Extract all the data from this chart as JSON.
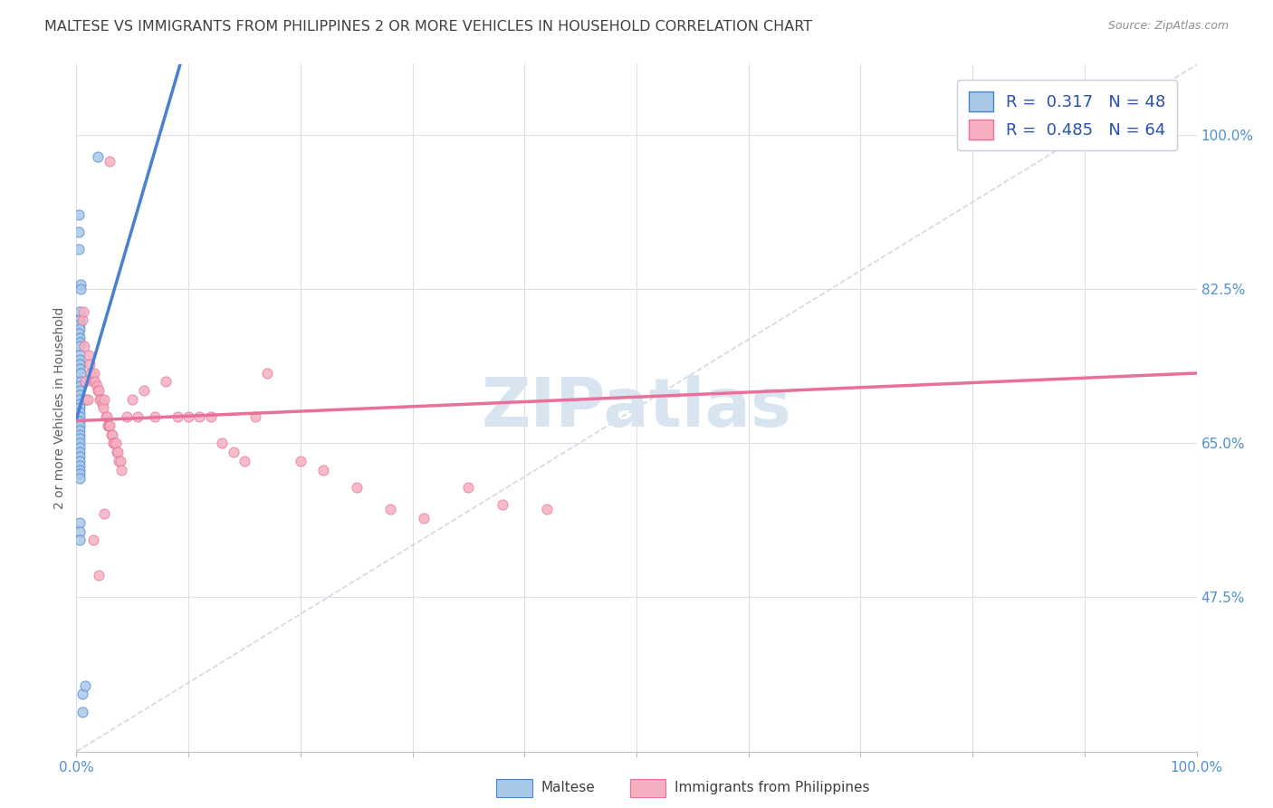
{
  "title": "MALTESE VS IMMIGRANTS FROM PHILIPPINES 2 OR MORE VEHICLES IN HOUSEHOLD CORRELATION CHART",
  "source": "Source: ZipAtlas.com",
  "ylabel": "2 or more Vehicles in Household",
  "ytick_labels": [
    "47.5%",
    "65.0%",
    "82.5%",
    "100.0%"
  ],
  "ytick_vals": [
    0.475,
    0.65,
    0.825,
    1.0
  ],
  "xlim": [
    0.0,
    1.0
  ],
  "ylim": [
    0.3,
    1.08
  ],
  "maltese_R": 0.317,
  "maltese_N": 48,
  "philippines_R": 0.485,
  "philippines_N": 64,
  "maltese_color": "#a8c8e8",
  "philippines_color": "#f4b0c0",
  "maltese_line_color": "#4a80d0",
  "philippines_line_color": "#e8709a",
  "diagonal_color": "#c8d0d8",
  "legend_R_color": "#2850b0",
  "background_color": "#ffffff",
  "grid_color": "#dde0e8",
  "title_color": "#404040",
  "axis_label_color": "#5090d0",
  "watermark_color": "#d8e4f0",
  "maltese_x": [
    0.019,
    0.002,
    0.002,
    0.002,
    0.004,
    0.004,
    0.003,
    0.003,
    0.003,
    0.003,
    0.002,
    0.003,
    0.003,
    0.003,
    0.003,
    0.003,
    0.003,
    0.003,
    0.004,
    0.004,
    0.003,
    0.003,
    0.003,
    0.003,
    0.003,
    0.003,
    0.003,
    0.003,
    0.003,
    0.003,
    0.003,
    0.003,
    0.003,
    0.003,
    0.003,
    0.003,
    0.003,
    0.003,
    0.003,
    0.003,
    0.003,
    0.003,
    0.003,
    0.003,
    0.003,
    0.005,
    0.008,
    0.005
  ],
  "maltese_y": [
    0.975,
    0.91,
    0.89,
    0.87,
    0.83,
    0.825,
    0.8,
    0.79,
    0.785,
    0.78,
    0.775,
    0.77,
    0.765,
    0.76,
    0.75,
    0.745,
    0.74,
    0.735,
    0.73,
    0.72,
    0.715,
    0.71,
    0.705,
    0.7,
    0.695,
    0.69,
    0.685,
    0.68,
    0.675,
    0.67,
    0.665,
    0.66,
    0.655,
    0.65,
    0.645,
    0.64,
    0.635,
    0.63,
    0.625,
    0.62,
    0.615,
    0.61,
    0.56,
    0.55,
    0.54,
    0.365,
    0.375,
    0.345
  ],
  "philippines_x": [
    0.03,
    0.005,
    0.006,
    0.007,
    0.008,
    0.009,
    0.01,
    0.011,
    0.012,
    0.013,
    0.014,
    0.015,
    0.016,
    0.017,
    0.018,
    0.019,
    0.02,
    0.021,
    0.022,
    0.023,
    0.024,
    0.025,
    0.026,
    0.027,
    0.028,
    0.029,
    0.03,
    0.031,
    0.032,
    0.033,
    0.034,
    0.035,
    0.036,
    0.037,
    0.038,
    0.039,
    0.04,
    0.045,
    0.05,
    0.055,
    0.06,
    0.07,
    0.08,
    0.09,
    0.1,
    0.11,
    0.12,
    0.13,
    0.14,
    0.15,
    0.16,
    0.17,
    0.2,
    0.22,
    0.25,
    0.28,
    0.31,
    0.35,
    0.38,
    0.42,
    0.015,
    0.02,
    0.95,
    0.025
  ],
  "philippines_y": [
    0.97,
    0.79,
    0.8,
    0.76,
    0.72,
    0.7,
    0.7,
    0.75,
    0.74,
    0.73,
    0.725,
    0.72,
    0.73,
    0.72,
    0.715,
    0.71,
    0.71,
    0.7,
    0.7,
    0.695,
    0.69,
    0.7,
    0.68,
    0.68,
    0.67,
    0.67,
    0.67,
    0.66,
    0.66,
    0.65,
    0.65,
    0.65,
    0.64,
    0.64,
    0.63,
    0.63,
    0.62,
    0.68,
    0.7,
    0.68,
    0.71,
    0.68,
    0.72,
    0.68,
    0.68,
    0.68,
    0.68,
    0.65,
    0.64,
    0.63,
    0.68,
    0.73,
    0.63,
    0.62,
    0.6,
    0.575,
    0.565,
    0.6,
    0.58,
    0.575,
    0.54,
    0.5,
    0.995,
    0.57
  ]
}
